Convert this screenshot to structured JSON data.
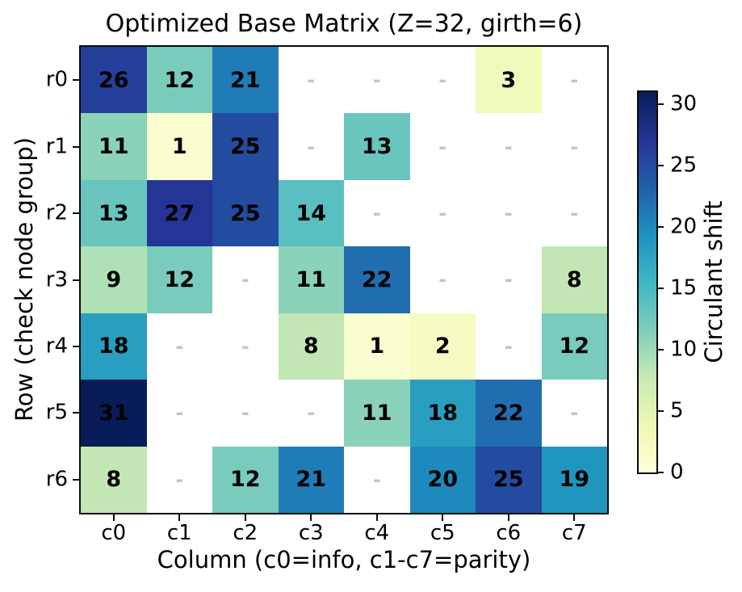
{
  "chart_data": {
    "type": "heatmap",
    "title": "Optimized Base Matrix (Z=32, girth=6)",
    "xlabel": "Column (c0=info, c1-c7=parity)",
    "ylabel": "Row (check node group)",
    "x_ticklabels": [
      "c0",
      "c1",
      "c2",
      "c3",
      "c4",
      "c5",
      "c6",
      "c7"
    ],
    "y_ticklabels": [
      "r0",
      "r1",
      "r2",
      "r3",
      "r4",
      "r5",
      "r6"
    ],
    "matrix": [
      [
        26,
        12,
        21,
        null,
        null,
        null,
        3,
        null
      ],
      [
        11,
        1,
        25,
        null,
        13,
        null,
        null,
        null
      ],
      [
        13,
        27,
        25,
        14,
        null,
        null,
        null,
        null
      ],
      [
        9,
        12,
        null,
        11,
        22,
        null,
        null,
        8
      ],
      [
        18,
        null,
        null,
        8,
        1,
        2,
        null,
        12
      ],
      [
        31,
        null,
        null,
        null,
        11,
        18,
        22,
        null
      ],
      [
        8,
        null,
        12,
        21,
        null,
        20,
        25,
        19
      ]
    ],
    "missing_symbol": "-",
    "missing_cell_color": "#ffffff",
    "value_text_color": "#000000",
    "missing_text_color": "#c4c4c4",
    "grid": false,
    "colorbar": {
      "label": "Circulant shift",
      "ticks": [
        0,
        5,
        10,
        15,
        20,
        25,
        30
      ],
      "vmin": 0,
      "vmax": 31,
      "colormap": "YlGnBu",
      "stops": [
        "#ffffd9",
        "#edf8b1",
        "#c7e9b4",
        "#7fcdbb",
        "#41b6c4",
        "#1d91c0",
        "#225ea8",
        "#253494",
        "#081d58"
      ]
    }
  }
}
